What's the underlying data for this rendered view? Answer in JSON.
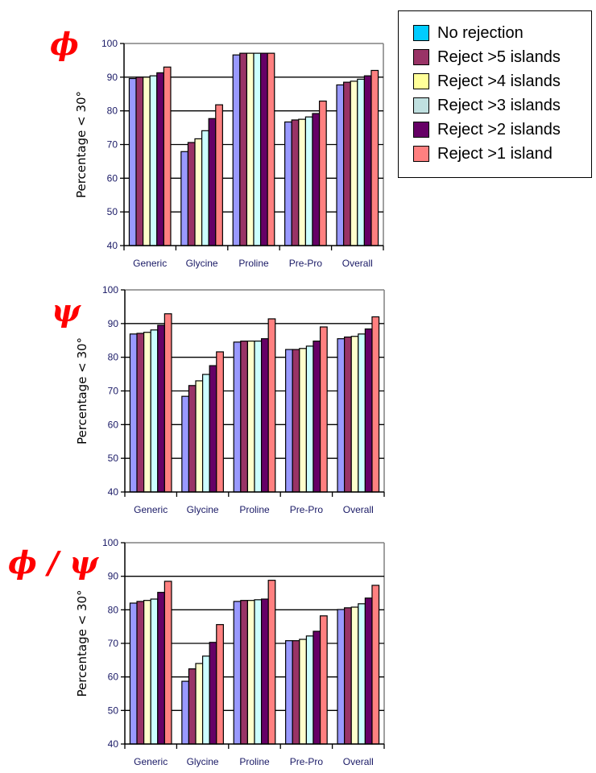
{
  "legend": {
    "items": [
      {
        "label": "No rejection",
        "color": "#00ccff"
      },
      {
        "label": "Reject >5 islands",
        "color": "#993366"
      },
      {
        "label": "Reject >4 islands",
        "color": "#ffff99"
      },
      {
        "label": "Reject >3 islands",
        "color": "#c0e0e0"
      },
      {
        "label": "Reject >2 islands",
        "color": "#660066"
      },
      {
        "label": "Reject >1 island",
        "color": "#ff8080"
      }
    ]
  },
  "bar_colors": [
    "#9999ff",
    "#993366",
    "#ffffcc",
    "#ccffff",
    "#660066",
    "#ff8080"
  ],
  "chart_data": [
    {
      "type": "bar",
      "title": "ϕ",
      "xlabel": "",
      "ylabel": "Percentage < 30°",
      "ylim": [
        40,
        100
      ],
      "yticks": [
        "40",
        "50",
        "60",
        "70",
        "80",
        "90",
        "100"
      ],
      "grid": true,
      "legend": "top-right",
      "categories": [
        "Generic",
        "Glycine",
        "Proline",
        "Pre-Pro",
        "Overall"
      ],
      "series": [
        {
          "name": "No rejection",
          "values": [
            89.6,
            67.9,
            96.6,
            76.7,
            87.7
          ]
        },
        {
          "name": "Reject >5 islands",
          "values": [
            90.0,
            70.6,
            97.1,
            77.3,
            88.5
          ]
        },
        {
          "name": "Reject >4 islands",
          "values": [
            90.0,
            71.7,
            97.1,
            77.5,
            88.8
          ]
        },
        {
          "name": "Reject >3 islands",
          "values": [
            90.4,
            74.1,
            97.1,
            78.2,
            89.4
          ]
        },
        {
          "name": "Reject >2 islands",
          "values": [
            91.3,
            77.7,
            97.1,
            79.2,
            90.4
          ]
        },
        {
          "name": "Reject >1 island",
          "values": [
            93.0,
            81.8,
            97.1,
            82.9,
            92.0
          ]
        }
      ]
    },
    {
      "type": "bar",
      "title": "ψ",
      "xlabel": "",
      "ylabel": "Percentage < 30°",
      "ylim": [
        40,
        100
      ],
      "yticks": [
        "40",
        "50",
        "60",
        "70",
        "80",
        "90",
        "100"
      ],
      "grid": true,
      "categories": [
        "Generic",
        "Glycine",
        "Proline",
        "Pre-Pro",
        "Overall"
      ],
      "series": [
        {
          "name": "No rejection",
          "values": [
            86.9,
            68.4,
            84.5,
            82.3,
            85.5
          ]
        },
        {
          "name": "Reject >5 islands",
          "values": [
            87.1,
            71.6,
            84.8,
            82.3,
            86.0
          ]
        },
        {
          "name": "Reject >4 islands",
          "values": [
            87.4,
            73.0,
            84.8,
            82.6,
            86.2
          ]
        },
        {
          "name": "Reject >3 islands",
          "values": [
            88.1,
            74.9,
            84.8,
            83.3,
            86.9
          ]
        },
        {
          "name": "Reject >2 islands",
          "values": [
            89.5,
            77.5,
            85.5,
            84.8,
            88.4
          ]
        },
        {
          "name": "Reject >1 island",
          "values": [
            92.9,
            81.6,
            91.4,
            89.0,
            92.0
          ]
        }
      ]
    },
    {
      "type": "bar",
      "title": "ϕ / ψ",
      "xlabel": "",
      "ylabel": "Percentage < 30°",
      "ylim": [
        40,
        100
      ],
      "yticks": [
        "40",
        "50",
        "60",
        "70",
        "80",
        "90",
        "100"
      ],
      "grid": true,
      "categories": [
        "Generic",
        "Glycine",
        "Proline",
        "Pre-Pro",
        "Overall"
      ],
      "series": [
        {
          "name": "No rejection",
          "values": [
            82.0,
            58.7,
            82.5,
            70.8,
            80.1
          ]
        },
        {
          "name": "Reject >5 islands",
          "values": [
            82.5,
            62.4,
            82.8,
            70.8,
            80.6
          ]
        },
        {
          "name": "Reject >4 islands",
          "values": [
            82.8,
            64.0,
            82.8,
            71.2,
            80.8
          ]
        },
        {
          "name": "Reject >3 islands",
          "values": [
            83.2,
            66.2,
            83.0,
            72.2,
            81.8
          ]
        },
        {
          "name": "Reject >2 islands",
          "values": [
            85.2,
            70.3,
            83.2,
            73.6,
            83.5
          ]
        },
        {
          "name": "Reject >1 island",
          "values": [
            88.5,
            75.6,
            88.8,
            78.2,
            87.3
          ]
        }
      ]
    }
  ]
}
